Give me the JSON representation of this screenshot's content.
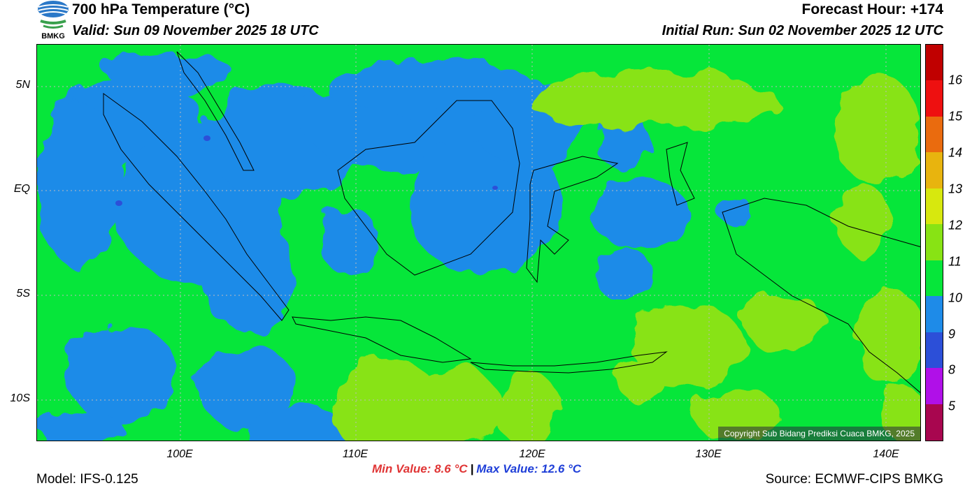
{
  "header": {
    "title": "700 hPa Temperature (°C)",
    "valid": "Valid: Sun 09 November 2025 18 UTC",
    "forecast_hour": "Forecast Hour: +174",
    "initial_run": "Initial Run: Sun 02 November 2025 12 UTC"
  },
  "logo": {
    "text": "BMKG",
    "icon": "bmkg-logo-icon"
  },
  "map": {
    "lat_labels": [
      "5N",
      "EQ",
      "5S",
      "10S"
    ],
    "lon_labels": [
      "100E",
      "110E",
      "120E",
      "130E",
      "140E"
    ],
    "copyright": "Copyright Sub Bidang Prediksi Cuaca BMKG, 2025",
    "colors": {
      "c9": "#1e8be8",
      "c10": "#06e63a",
      "c11": "#88e314",
      "c8": "#2c4fd8",
      "c7": "#b010e8"
    }
  },
  "colorbar": {
    "labels": [
      "5",
      "8",
      "9",
      "10",
      "11",
      "12",
      "13",
      "14",
      "15",
      "16"
    ],
    "colors": [
      "#a8064f",
      "#b010e8",
      "#2c4fd8",
      "#1e8be8",
      "#06e63a",
      "#88e314",
      "#d7e80e",
      "#e8b40e",
      "#ea6b0e",
      "#ee1010",
      "#c00000"
    ]
  },
  "footer": {
    "min_value": "Min Value: 8.6 °C",
    "separator": "|",
    "max_value": "Max Value: 12.6 °C",
    "model": "Model: IFS-0.125",
    "source": "Source: ECMWF-CIPS BMKG"
  }
}
